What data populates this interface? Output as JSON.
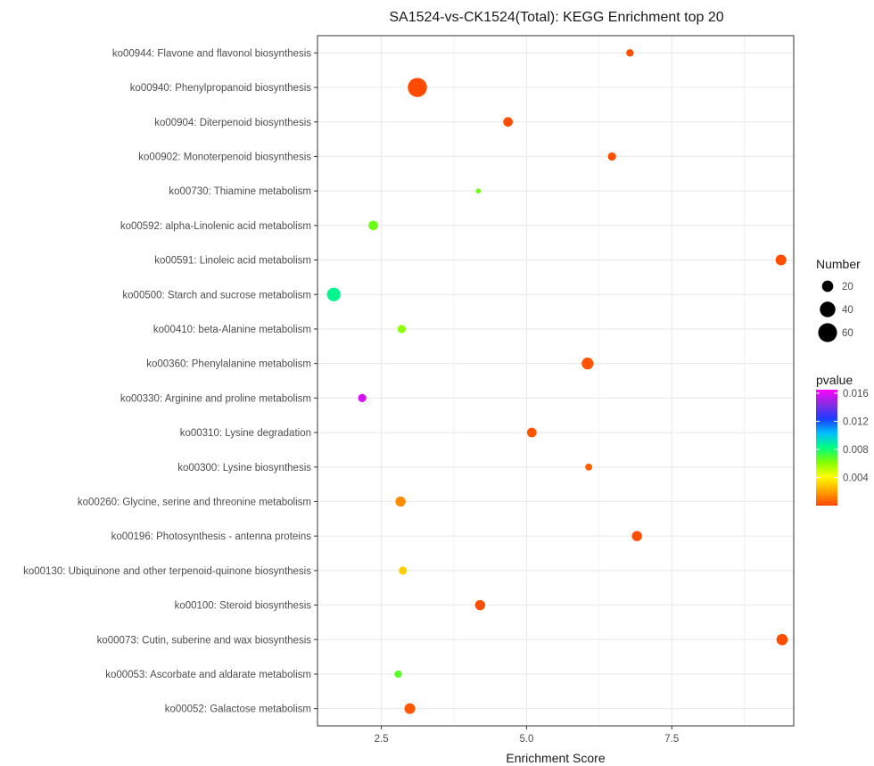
{
  "chart_data": {
    "type": "scatter",
    "title": "SA1524-vs-CK1524(Total): KEGG Enrichment top 20",
    "xlabel": "Enrichment Score",
    "ylabel": "",
    "xlim": [
      1.4,
      9.6
    ],
    "xticks": [
      2.5,
      5.0,
      7.5
    ],
    "xtick_labels": [
      "2.5",
      "5.0",
      "7.5"
    ],
    "grid": true,
    "points": [
      {
        "term": "ko00944: Flavone and flavonol biosynthesis",
        "x": 6.78,
        "number": 8,
        "pvalue": 0.0002
      },
      {
        "term": "ko00940: Phenylpropanoid biosynthesis",
        "x": 3.12,
        "number": 62,
        "pvalue": 0.0001
      },
      {
        "term": "ko00904: Diterpenoid biosynthesis",
        "x": 4.68,
        "number": 14,
        "pvalue": 0.0002
      },
      {
        "term": "ko00902: Monoterpenoid biosynthesis",
        "x": 6.47,
        "number": 10,
        "pvalue": 0.0002
      },
      {
        "term": "ko00730: Thiamine metabolism",
        "x": 4.17,
        "number": 3,
        "pvalue": 0.0065
      },
      {
        "term": "ko00592: alpha-Linolenic acid metabolism",
        "x": 2.36,
        "number": 14,
        "pvalue": 0.0065
      },
      {
        "term": "ko00591: Linoleic acid metabolism",
        "x": 9.38,
        "number": 18,
        "pvalue": 0.0002
      },
      {
        "term": "ko00500: Starch and sucrose metabolism",
        "x": 1.68,
        "number": 30,
        "pvalue": 0.0085
      },
      {
        "term": "ko00410: beta-Alanine metabolism",
        "x": 2.85,
        "number": 10,
        "pvalue": 0.006
      },
      {
        "term": "ko00360: Phenylalanine metabolism",
        "x": 6.05,
        "number": 22,
        "pvalue": 0.0003
      },
      {
        "term": "ko00330: Arginine and proline metabolism",
        "x": 2.17,
        "number": 10,
        "pvalue": 0.0158
      },
      {
        "term": "ko00310: Lysine degradation",
        "x": 5.09,
        "number": 14,
        "pvalue": 0.0003
      },
      {
        "term": "ko00300: Lysine biosynthesis",
        "x": 6.07,
        "number": 7,
        "pvalue": 0.0006
      },
      {
        "term": "ko00260: Glycine, serine and threonine metabolism",
        "x": 2.83,
        "number": 16,
        "pvalue": 0.0015
      },
      {
        "term": "ko00196: Photosynthesis - antenna proteins",
        "x": 6.9,
        "number": 16,
        "pvalue": 0.0002
      },
      {
        "term": "ko00130: Ubiquinone and other terpenoid-quinone biosynthesis",
        "x": 2.87,
        "number": 10,
        "pvalue": 0.003
      },
      {
        "term": "ko00100: Steroid biosynthesis",
        "x": 4.2,
        "number": 16,
        "pvalue": 0.0002
      },
      {
        "term": "ko00073: Cutin, suberine and wax biosynthesis",
        "x": 9.4,
        "number": 20,
        "pvalue": 0.0002
      },
      {
        "term": "ko00053: Ascorbate and aldarate metabolism",
        "x": 2.79,
        "number": 8,
        "pvalue": 0.0068
      },
      {
        "term": "ko00052: Galactose metabolism",
        "x": 2.99,
        "number": 18,
        "pvalue": 0.0004
      }
    ],
    "legend_size": {
      "title": "Number",
      "values": [
        20,
        40,
        60
      ],
      "labels": [
        "20",
        "40",
        "60"
      ]
    },
    "legend_color": {
      "title": "pvalue",
      "ticks": [
        0.016,
        0.012,
        0.008,
        0.004
      ],
      "labels": [
        "0.016",
        "0.012",
        "0.008",
        "0.004"
      ],
      "range": [
        0.0,
        0.0165
      ],
      "gradient": [
        "#ff4500",
        "#ffa500",
        "#ffff00",
        "#7fff00",
        "#00ff7f",
        "#00bfff",
        "#1e3cff",
        "#8a2be2",
        "#ff00ff"
      ]
    },
    "colors": {
      "panel_border": "#333333",
      "grid": "#ebebeb",
      "text": "#4d4d4d"
    }
  }
}
